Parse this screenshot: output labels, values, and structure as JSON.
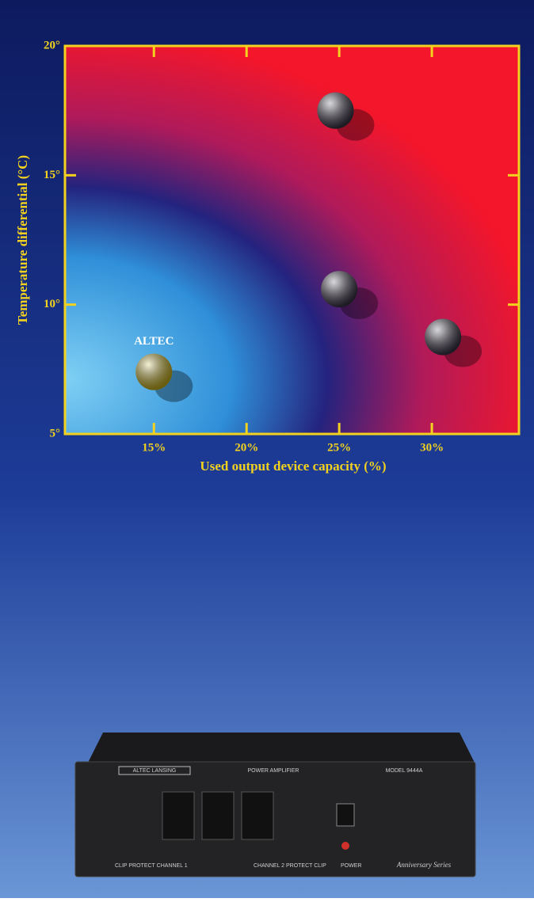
{
  "chart_data": {
    "type": "scatter",
    "x_label": "Used output device capacity (%)",
    "y_label": "Temperature differential (°C)",
    "x": [
      15,
      24.8,
      25,
      30.6
    ],
    "values": [
      7.4,
      17.5,
      10.6,
      8.75
    ],
    "colors": [
      "#c9b21c",
      "#3a3446",
      "#3a3446",
      "#3a3446"
    ],
    "annotation": "ALTEC",
    "xlim": [
      10.2,
      34.7
    ],
    "ylim": [
      5,
      20
    ],
    "xticks": [
      {
        "value": 15,
        "label": "15%"
      },
      {
        "value": 20,
        "label": "20%"
      },
      {
        "value": 25,
        "label": "25%"
      },
      {
        "value": 30,
        "label": "30%"
      }
    ],
    "yticks": [
      {
        "value": 5,
        "label": "5°"
      },
      {
        "value": 10,
        "label": "10°"
      },
      {
        "value": 15,
        "label": "15°"
      },
      {
        "value": 20,
        "label": "20°"
      }
    ]
  },
  "product": {
    "brand": "ALTEC LANSING",
    "name": "POWER AMPLIFIER",
    "model": "MODEL 9444A",
    "left_labels": "CLIP   PROTECT   CHANNEL 1",
    "right_labels": "CHANNEL 2   PROTECT   CLIP",
    "power": "POWER",
    "series": "Anniversary Series"
  }
}
